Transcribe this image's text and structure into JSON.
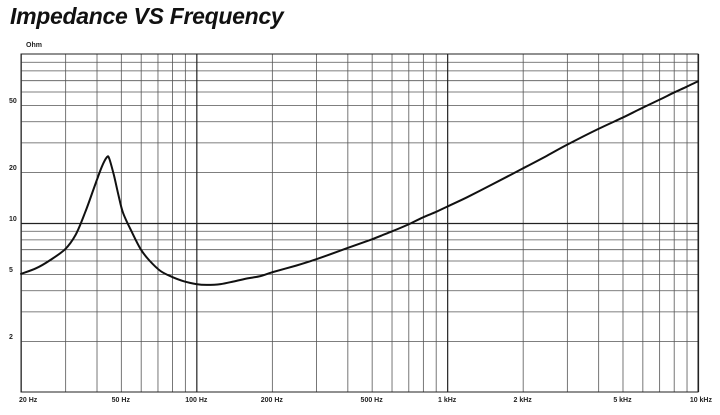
{
  "chart_data": {
    "type": "line",
    "title": "Impedance VS Frequency",
    "ylabel": "Ohm",
    "xlabel": "",
    "x_scale": "log",
    "y_scale": "log",
    "xlim": [
      20,
      10000
    ],
    "ylim": [
      1,
      100
    ],
    "grid": true,
    "x_ticks": [
      {
        "value": 20,
        "label": "20 Hz"
      },
      {
        "value": 50,
        "label": "50 Hz"
      },
      {
        "value": 100,
        "label": "100 Hz"
      },
      {
        "value": 200,
        "label": "200 Hz"
      },
      {
        "value": 500,
        "label": "500 Hz"
      },
      {
        "value": 1000,
        "label": "1 kHz"
      },
      {
        "value": 2000,
        "label": "2 kHz"
      },
      {
        "value": 5000,
        "label": "5 kHz"
      },
      {
        "value": 10000,
        "label": "10 kHz"
      }
    ],
    "y_ticks": [
      {
        "value": 2,
        "label": "2"
      },
      {
        "value": 5,
        "label": "5"
      },
      {
        "value": 10,
        "label": "10"
      },
      {
        "value": 20,
        "label": "20"
      },
      {
        "value": 50,
        "label": "50"
      }
    ],
    "series": [
      {
        "color": "#111111",
        "points": [
          [
            20,
            5.0
          ],
          [
            23,
            5.4
          ],
          [
            26,
            6.0
          ],
          [
            30,
            7.0
          ],
          [
            33,
            8.5
          ],
          [
            36,
            11.5
          ],
          [
            39,
            16
          ],
          [
            42,
            21.5
          ],
          [
            44,
            24.5
          ],
          [
            45,
            24.0
          ],
          [
            47,
            19
          ],
          [
            49,
            14.5
          ],
          [
            51,
            11.5
          ],
          [
            55,
            9.0
          ],
          [
            60,
            7.0
          ],
          [
            65,
            6.0
          ],
          [
            72,
            5.2
          ],
          [
            80,
            4.8
          ],
          [
            90,
            4.5
          ],
          [
            100,
            4.35
          ],
          [
            110,
            4.3
          ],
          [
            125,
            4.35
          ],
          [
            140,
            4.5
          ],
          [
            160,
            4.7
          ],
          [
            180,
            4.85
          ],
          [
            200,
            5.1
          ],
          [
            250,
            5.6
          ],
          [
            300,
            6.1
          ],
          [
            400,
            7.1
          ],
          [
            500,
            8.0
          ],
          [
            600,
            8.9
          ],
          [
            700,
            9.8
          ],
          [
            800,
            10.8
          ],
          [
            900,
            11.6
          ],
          [
            1000,
            12.5
          ],
          [
            1200,
            14.2
          ],
          [
            1500,
            16.8
          ],
          [
            2000,
            21
          ],
          [
            2500,
            25
          ],
          [
            3000,
            29
          ],
          [
            4000,
            36
          ],
          [
            5000,
            42
          ],
          [
            6000,
            48
          ],
          [
            7000,
            53.5
          ],
          [
            8000,
            59
          ],
          [
            9000,
            64
          ],
          [
            10000,
            69
          ]
        ]
      }
    ]
  }
}
